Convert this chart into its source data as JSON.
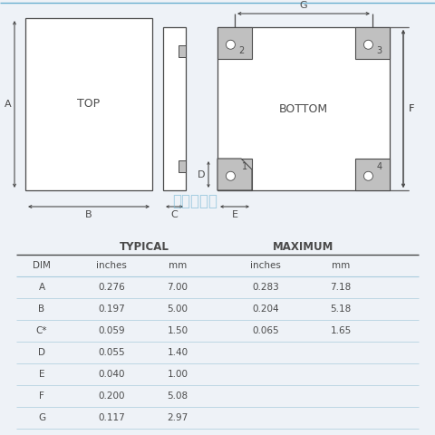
{
  "bg_color": "#eef2f7",
  "line_color": "#4a4a4a",
  "gray_fill": "#c0c0c0",
  "white_fill": "#ffffff",
  "watermark_color": "#7ab8d4",
  "watermark_text": "康华尔电子",
  "top_label": "TOP",
  "bottom_label": "BOTTOM",
  "table_header1": "TYPICAL",
  "table_header2": "MAXIMUM",
  "col_headers": [
    "DIM",
    "inches",
    "mm",
    "inches",
    "mm"
  ],
  "rows": [
    [
      "A",
      "0.276",
      "7.00",
      "0.283",
      "7.18"
    ],
    [
      "B",
      "0.197",
      "5.00",
      "0.204",
      "5.18"
    ],
    [
      "C*",
      "0.059",
      "1.50",
      "0.065",
      "1.65"
    ],
    [
      "D",
      "0.055",
      "1.40",
      "",
      ""
    ],
    [
      "E",
      "0.040",
      "1.00",
      "",
      ""
    ],
    [
      "F",
      "0.200",
      "5.08",
      "",
      ""
    ],
    [
      "G",
      "0.117",
      "2.97",
      "",
      ""
    ]
  ],
  "top_line_color": "#6ab0d0"
}
